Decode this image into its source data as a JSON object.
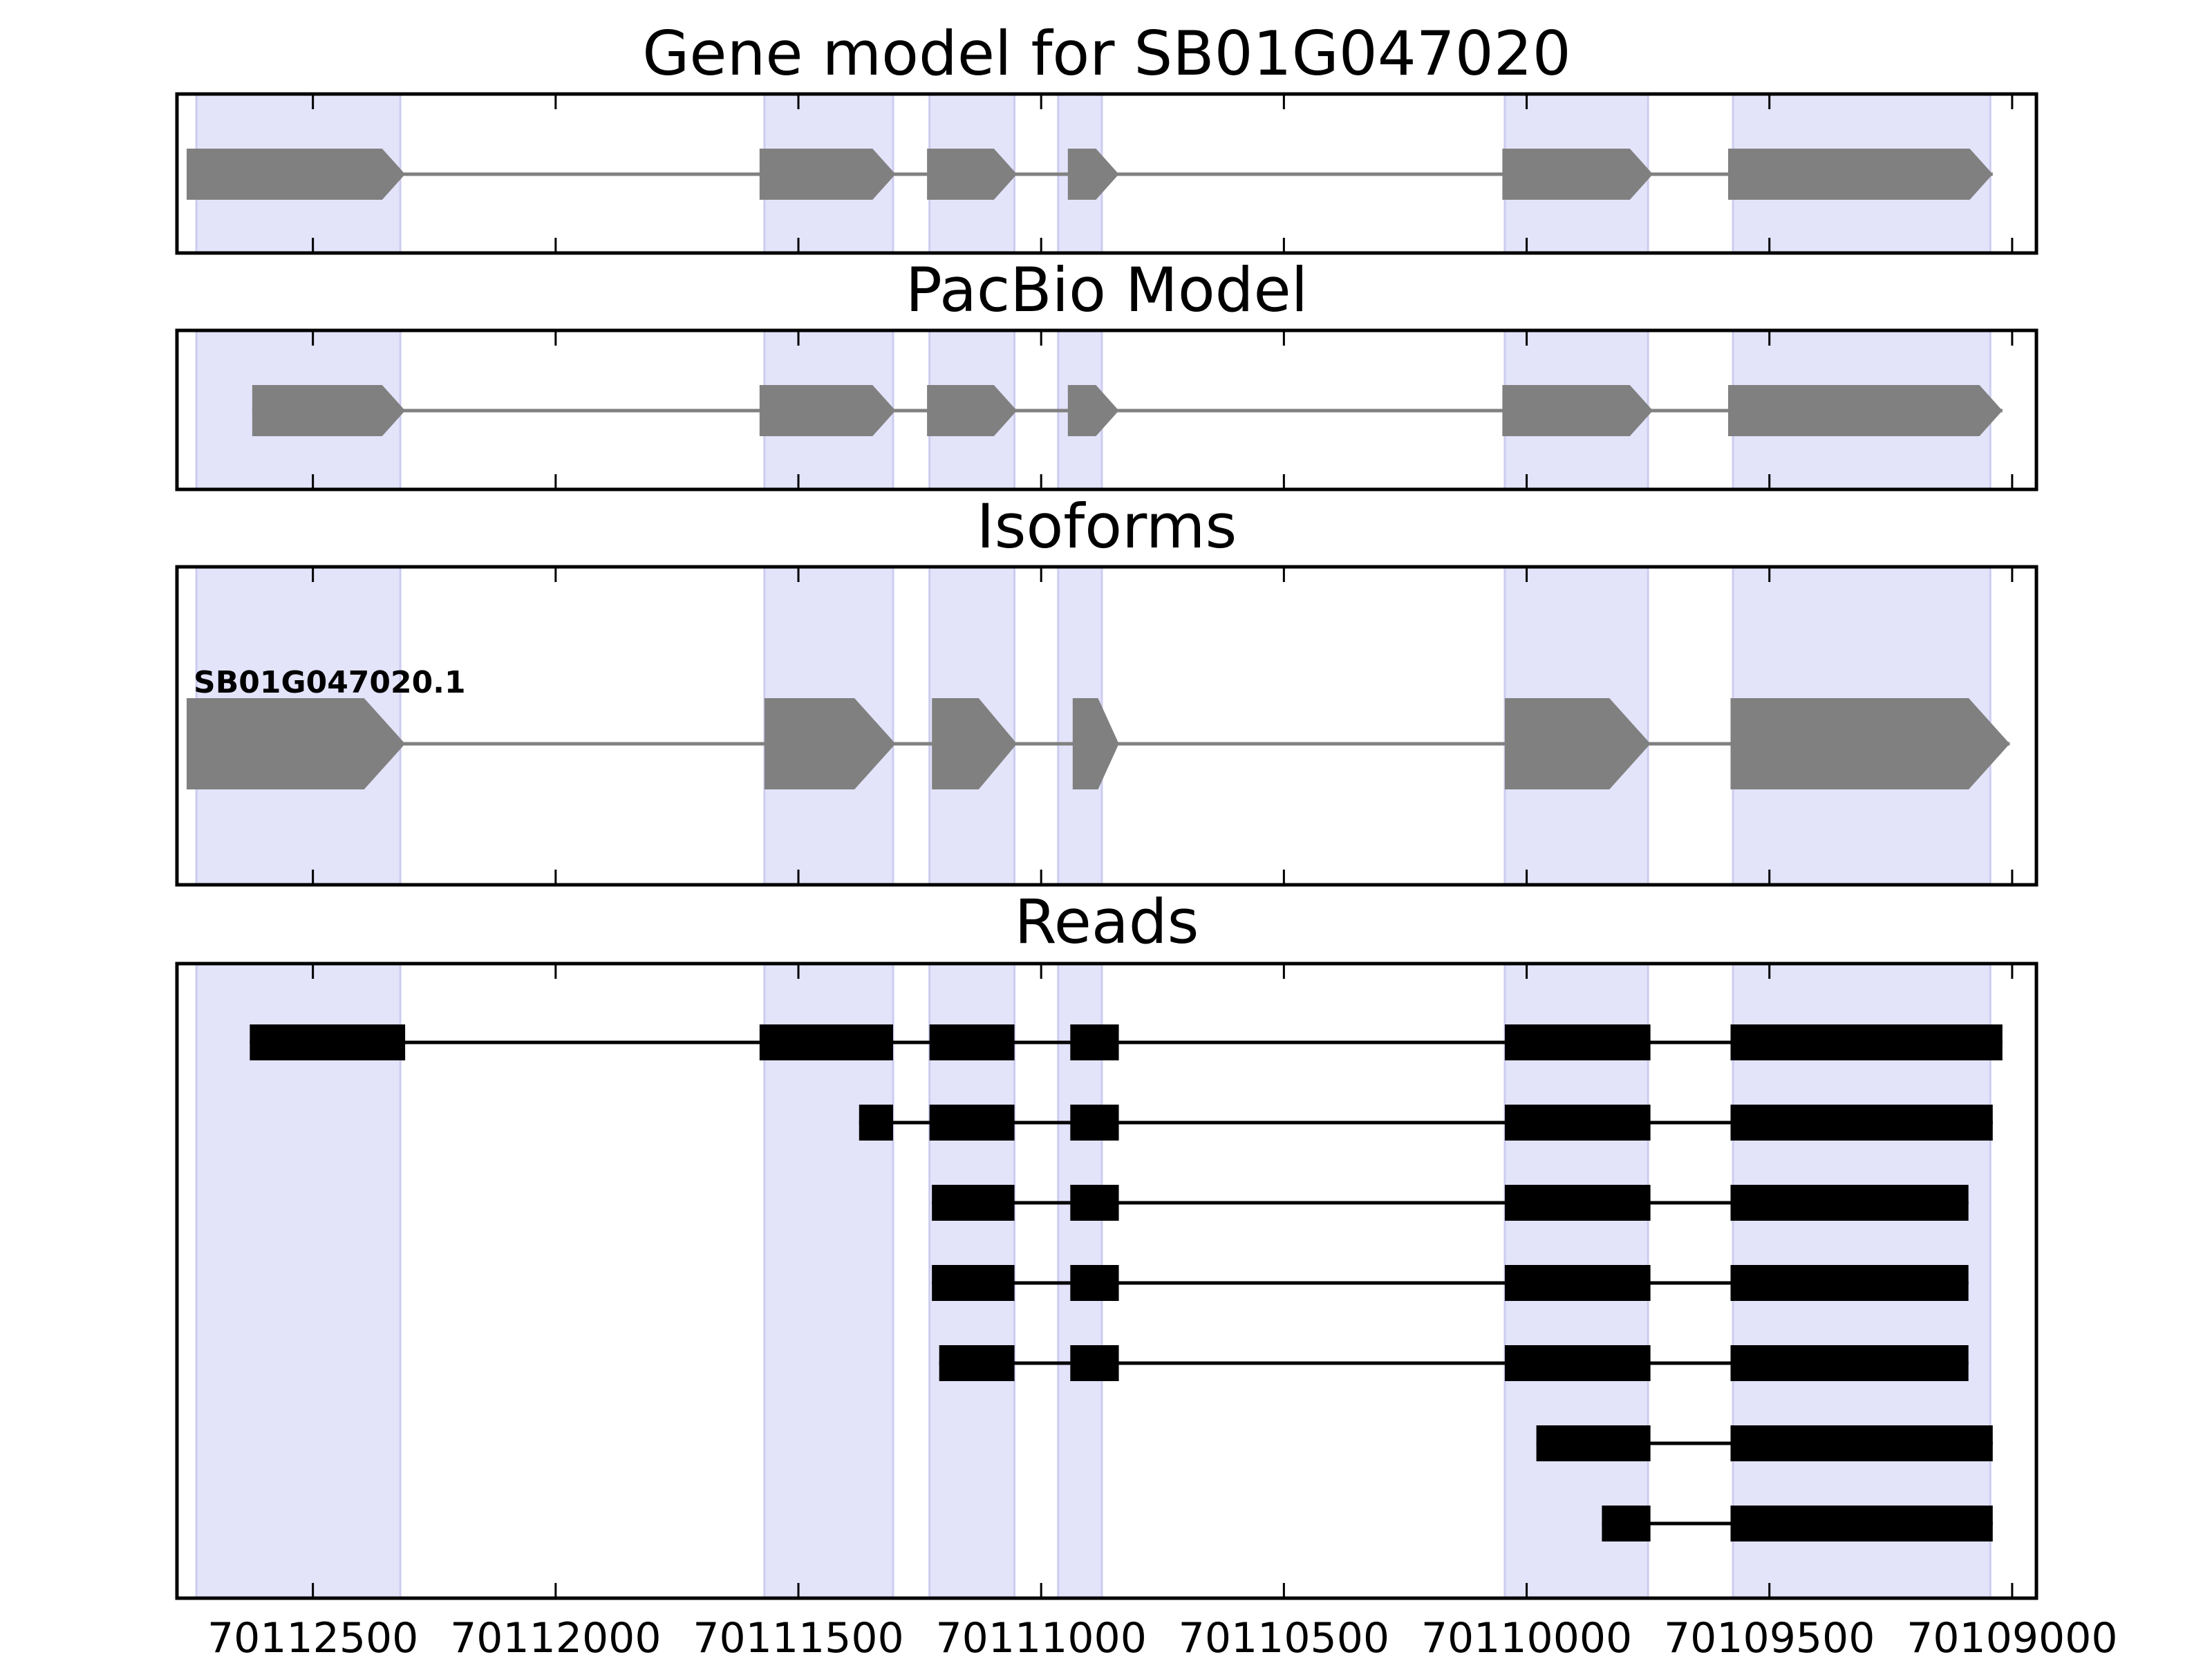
{
  "chart_data": [
    {
      "type": "gene_model",
      "title": "Gene model for SB01G047020",
      "xlim": [
        70112780,
        70108950
      ],
      "exon_shading": [
        [
          70112740,
          70112320
        ],
        [
          70111570,
          70111305
        ],
        [
          70111230,
          70111055
        ],
        [
          70110965,
          70110875
        ],
        [
          70110045,
          70109750
        ],
        [
          70109575,
          70109045
        ]
      ],
      "features": [
        {
          "start": 70112760,
          "end": 70112310,
          "style": "arrow",
          "color": "#808080"
        },
        {
          "start": 70111580,
          "end": 70111300,
          "style": "arrow",
          "color": "#808080"
        },
        {
          "start": 70111235,
          "end": 70111050,
          "style": "arrow",
          "color": "#808080"
        },
        {
          "start": 70110945,
          "end": 70110840,
          "style": "arrow",
          "color": "#808080"
        },
        {
          "start": 70110050,
          "end": 70109740,
          "style": "arrow",
          "color": "#808080"
        },
        {
          "start": 70109585,
          "end": 70109040,
          "style": "arrow",
          "color": "#808080"
        }
      ]
    },
    {
      "type": "gene_model",
      "title": "PacBio Model",
      "xlim": [
        70112780,
        70108950
      ],
      "exon_shading": [
        [
          70112740,
          70112320
        ],
        [
          70111570,
          70111305
        ],
        [
          70111230,
          70111055
        ],
        [
          70110965,
          70110875
        ],
        [
          70110045,
          70109750
        ],
        [
          70109575,
          70109045
        ]
      ],
      "features": [
        {
          "start": 70112625,
          "end": 70112310,
          "style": "arrow",
          "color": "#808080"
        },
        {
          "start": 70111580,
          "end": 70111300,
          "style": "arrow",
          "color": "#808080"
        },
        {
          "start": 70111235,
          "end": 70111050,
          "style": "arrow",
          "color": "#808080"
        },
        {
          "start": 70110945,
          "end": 70110840,
          "style": "arrow",
          "color": "#808080"
        },
        {
          "start": 70110050,
          "end": 70109740,
          "style": "arrow",
          "color": "#808080"
        },
        {
          "start": 70109585,
          "end": 70109020,
          "style": "arrow",
          "color": "#808080"
        }
      ]
    },
    {
      "type": "gene_model",
      "title": "Isoforms",
      "xlim": [
        70112780,
        70108950
      ],
      "exon_shading": [
        [
          70112740,
          70112320
        ],
        [
          70111570,
          70111305
        ],
        [
          70111230,
          70111055
        ],
        [
          70110965,
          70110875
        ],
        [
          70110045,
          70109750
        ],
        [
          70109575,
          70109045
        ]
      ],
      "isoform_label": "SB01G047020.1",
      "features": [
        {
          "start": 70112760,
          "end": 70112310,
          "style": "arrow",
          "color": "#808080"
        },
        {
          "start": 70111570,
          "end": 70111300,
          "style": "arrow",
          "color": "#808080"
        },
        {
          "start": 70111225,
          "end": 70111050,
          "style": "arrow",
          "color": "#808080"
        },
        {
          "start": 70110935,
          "end": 70110840,
          "style": "arrow",
          "color": "#808080"
        },
        {
          "start": 70110045,
          "end": 70109745,
          "style": "arrow",
          "color": "#808080"
        },
        {
          "start": 70109580,
          "end": 70109005,
          "style": "arrow",
          "color": "#808080"
        }
      ]
    },
    {
      "type": "reads",
      "title": "Reads",
      "xlim": [
        70112780,
        70108950
      ],
      "exon_shading": [
        [
          70112740,
          70112320
        ],
        [
          70111570,
          70111305
        ],
        [
          70111230,
          70111055
        ],
        [
          70110965,
          70110875
        ],
        [
          70110045,
          70109750
        ],
        [
          70109575,
          70109045
        ]
      ],
      "xticks": [
        70112500,
        70112000,
        70111500,
        70111000,
        70110500,
        70110000,
        70109500,
        70109000
      ],
      "xtick_labels": [
        "70112500",
        "70112000",
        "70111500",
        "70111000",
        "70110500",
        "70110000",
        "70109500",
        "70109000"
      ],
      "reads": [
        [
          [
            70112630,
            70112310
          ],
          [
            70111580,
            70111305
          ],
          [
            70111230,
            70111055
          ],
          [
            70110940,
            70110840
          ],
          [
            70110045,
            70109745
          ],
          [
            70109580,
            70109020
          ]
        ],
        [
          [
            70111375,
            70111305
          ],
          [
            70111230,
            70111055
          ],
          [
            70110940,
            70110840
          ],
          [
            70110045,
            70109745
          ],
          [
            70109580,
            70109040
          ]
        ],
        [
          [
            70111225,
            70111055
          ],
          [
            70110940,
            70110840
          ],
          [
            70110045,
            70109745
          ],
          [
            70109580,
            70109090
          ]
        ],
        [
          [
            70111225,
            70111055
          ],
          [
            70110940,
            70110840
          ],
          [
            70110045,
            70109745
          ],
          [
            70109580,
            70109090
          ]
        ],
        [
          [
            70111210,
            70111055
          ],
          [
            70110940,
            70110840
          ],
          [
            70110045,
            70109745
          ],
          [
            70109580,
            70109090
          ]
        ],
        [
          [
            70109980,
            70109745
          ],
          [
            70109580,
            70109040
          ]
        ],
        [
          [
            70109845,
            70109745
          ],
          [
            70109580,
            70109040
          ]
        ]
      ]
    }
  ],
  "colors": {
    "shading": "#e3e3fa",
    "shading_edge": "#ccccf0",
    "feature": "#808080",
    "read": "#000000",
    "frame": "#000000"
  }
}
